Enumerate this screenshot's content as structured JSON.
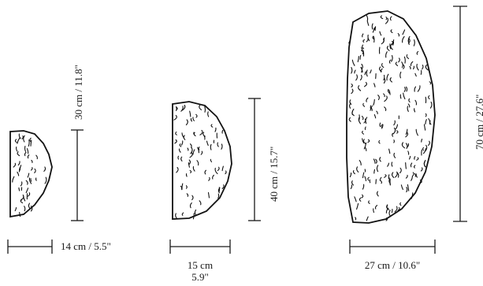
{
  "items": [
    {
      "id": "small",
      "height_label": "30 cm / 11.8\"",
      "width_label": "14 cm / 5.5\""
    },
    {
      "id": "medium",
      "height_label": "40 cm / 15.7\"",
      "width_label_line1": "15 cm",
      "width_label_line2": "5.9\""
    },
    {
      "id": "large",
      "height_label": "70 cm / 27.6\"",
      "width_label": "27 cm / 10.6\""
    }
  ]
}
